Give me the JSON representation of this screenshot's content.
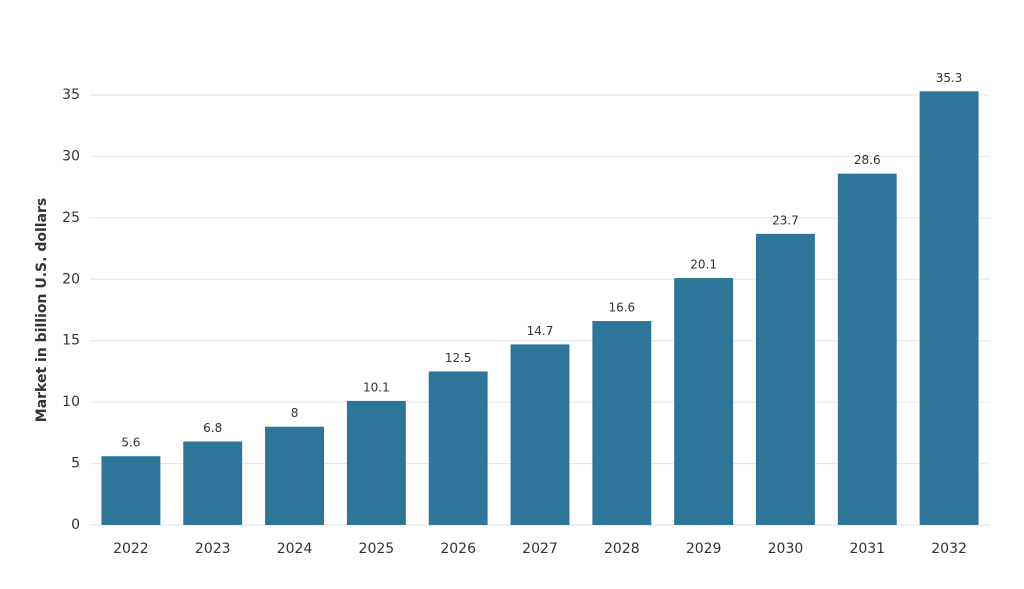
{
  "chart_data": {
    "type": "bar",
    "y_axis_label": "Market in billion U.S. dollars",
    "categories": [
      "2022",
      "2023",
      "2024",
      "2025",
      "2026",
      "2027",
      "2028",
      "2029",
      "2030",
      "2031",
      "2032"
    ],
    "values": [
      5.6,
      6.8,
      8,
      10.1,
      12.5,
      14.7,
      16.6,
      20.1,
      23.7,
      28.6,
      35.3
    ],
    "color": "#2e7699",
    "ylim": [
      0,
      35
    ],
    "yticks": [
      0,
      5,
      10,
      15,
      20,
      25,
      30,
      35
    ],
    "grid": true
  }
}
